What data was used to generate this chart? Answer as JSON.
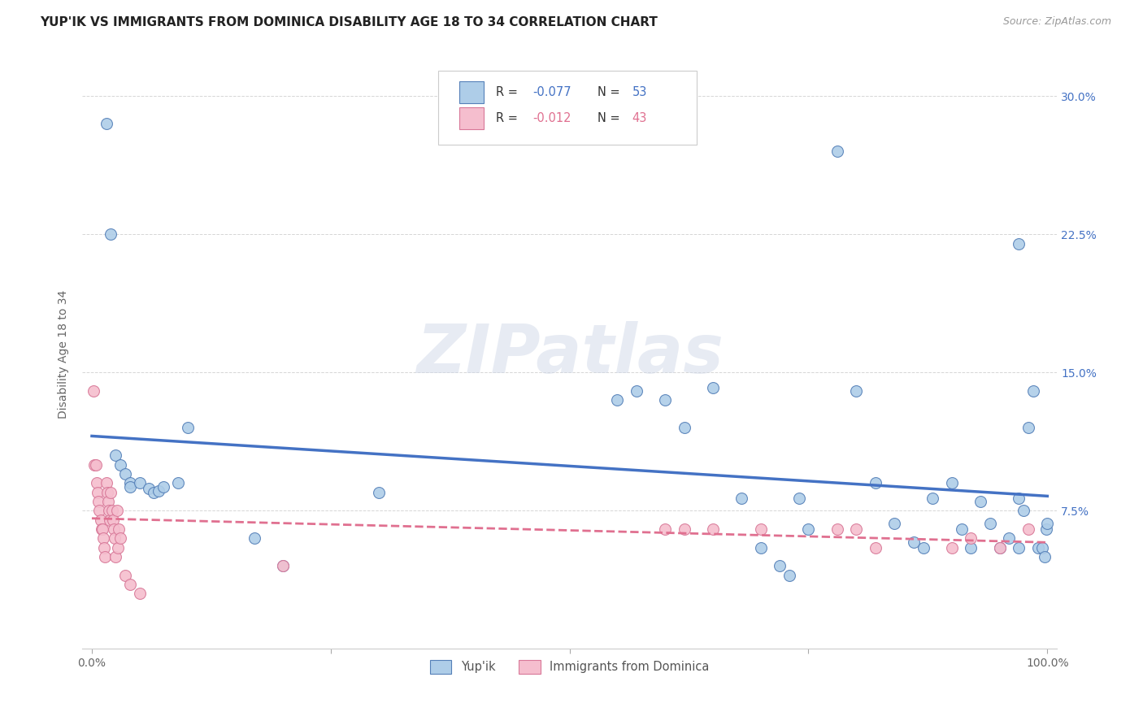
{
  "title": "YUP'IK VS IMMIGRANTS FROM DOMINICA DISABILITY AGE 18 TO 34 CORRELATION CHART",
  "source": "Source: ZipAtlas.com",
  "ylabel": "Disability Age 18 to 34",
  "xlim": [
    -0.01,
    1.01
  ],
  "ylim": [
    0.0,
    0.32
  ],
  "yticks": [
    0.075,
    0.15,
    0.225,
    0.3
  ],
  "ytick_labels": [
    "7.5%",
    "15.0%",
    "22.5%",
    "30.0%"
  ],
  "xticks": [
    0.0,
    0.25,
    0.5,
    0.75,
    1.0
  ],
  "xtick_labels": [
    "0.0%",
    "",
    "",
    "",
    "100.0%"
  ],
  "yupik_x": [
    0.015,
    0.02,
    0.025,
    0.03,
    0.035,
    0.04,
    0.04,
    0.05,
    0.06,
    0.065,
    0.07,
    0.075,
    0.09,
    0.1,
    0.17,
    0.2,
    0.3,
    0.55,
    0.57,
    0.6,
    0.62,
    0.65,
    0.68,
    0.7,
    0.72,
    0.73,
    0.74,
    0.75,
    0.78,
    0.8,
    0.82,
    0.84,
    0.86,
    0.87,
    0.88,
    0.9,
    0.91,
    0.92,
    0.93,
    0.94,
    0.95,
    0.96,
    0.97,
    0.97,
    0.97,
    0.975,
    0.98,
    0.985,
    0.99,
    0.995,
    0.997,
    0.999,
    1.0
  ],
  "yupik_y": [
    0.285,
    0.225,
    0.105,
    0.1,
    0.095,
    0.09,
    0.088,
    0.09,
    0.087,
    0.085,
    0.086,
    0.088,
    0.09,
    0.12,
    0.06,
    0.045,
    0.085,
    0.135,
    0.14,
    0.135,
    0.12,
    0.142,
    0.082,
    0.055,
    0.045,
    0.04,
    0.082,
    0.065,
    0.27,
    0.14,
    0.09,
    0.068,
    0.058,
    0.055,
    0.082,
    0.09,
    0.065,
    0.055,
    0.08,
    0.068,
    0.055,
    0.06,
    0.055,
    0.082,
    0.22,
    0.075,
    0.12,
    0.14,
    0.055,
    0.055,
    0.05,
    0.065,
    0.068
  ],
  "dominica_x": [
    0.002,
    0.003,
    0.004,
    0.005,
    0.006,
    0.007,
    0.008,
    0.009,
    0.01,
    0.011,
    0.012,
    0.013,
    0.014,
    0.015,
    0.016,
    0.017,
    0.018,
    0.019,
    0.02,
    0.021,
    0.022,
    0.023,
    0.024,
    0.025,
    0.026,
    0.027,
    0.028,
    0.03,
    0.035,
    0.04,
    0.05,
    0.2,
    0.6,
    0.62,
    0.65,
    0.7,
    0.78,
    0.8,
    0.82,
    0.9,
    0.92,
    0.95,
    0.98
  ],
  "dominica_y": [
    0.14,
    0.1,
    0.1,
    0.09,
    0.085,
    0.08,
    0.075,
    0.07,
    0.065,
    0.065,
    0.06,
    0.055,
    0.05,
    0.09,
    0.085,
    0.08,
    0.075,
    0.07,
    0.085,
    0.075,
    0.07,
    0.065,
    0.06,
    0.05,
    0.075,
    0.055,
    0.065,
    0.06,
    0.04,
    0.035,
    0.03,
    0.045,
    0.065,
    0.065,
    0.065,
    0.065,
    0.065,
    0.065,
    0.055,
    0.055,
    0.06,
    0.055,
    0.065
  ],
  "yupik_face": "#aecde8",
  "yupik_edge": "#5580b8",
  "dominica_face": "#f5bece",
  "dominica_edge": "#d87898",
  "yupik_trend_color": "#4472c4",
  "dominica_trend_color": "#e07090",
  "bg_color": "#ffffff",
  "grid_color": "#cccccc",
  "watermark_text": "ZIPatlas",
  "r_yupik": "-0.077",
  "n_yupik": "53",
  "r_dominica": "-0.012",
  "n_dominica": "43",
  "legend_label_yupik": "Yup'ik",
  "legend_label_dominica": "Immigrants from Dominica"
}
